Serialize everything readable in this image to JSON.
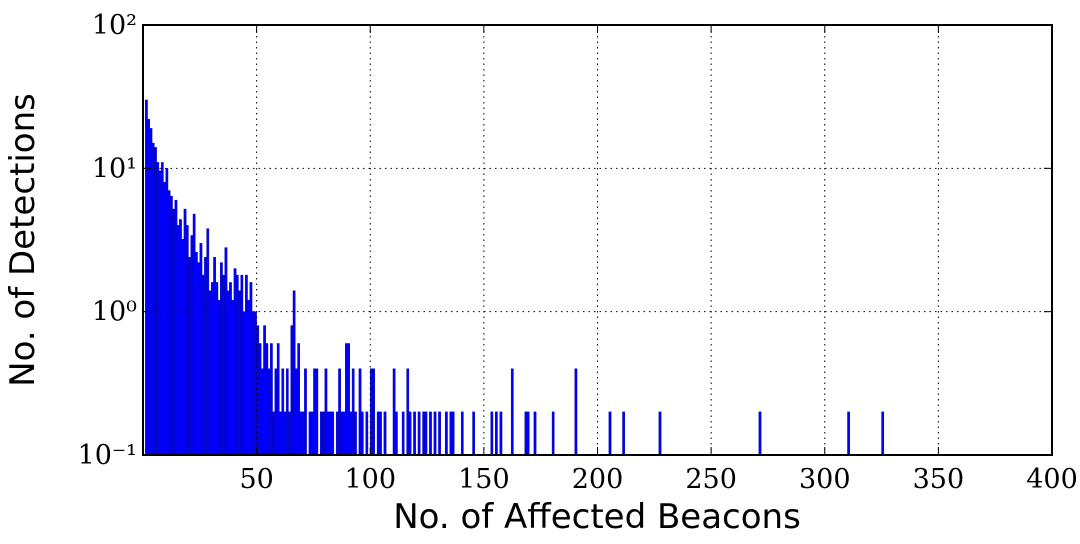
{
  "chart_data": {
    "type": "bar",
    "xlabel": "No. of Affected Beacons",
    "ylabel": "No. of Detections",
    "x": [
      1,
      2,
      3,
      4,
      5,
      6,
      7,
      8,
      9,
      10,
      11,
      12,
      13,
      14,
      15,
      16,
      17,
      18,
      19,
      20,
      21,
      22,
      23,
      24,
      25,
      26,
      27,
      28,
      29,
      30,
      31,
      32,
      33,
      34,
      35,
      36,
      37,
      38,
      39,
      40,
      41,
      42,
      43,
      44,
      45,
      46,
      47,
      48,
      49,
      50,
      51,
      52,
      53,
      54,
      55,
      56,
      57,
      58,
      59,
      60,
      61,
      62,
      63,
      64,
      65,
      66,
      67,
      68,
      69,
      70,
      71,
      73,
      74,
      75,
      76,
      78,
      79,
      80,
      81,
      82,
      83,
      85,
      86,
      87,
      88,
      89,
      90,
      91,
      92,
      93,
      95,
      96,
      98,
      100,
      101,
      103,
      104,
      106,
      110,
      111,
      114,
      116,
      117,
      119,
      121,
      123,
      124,
      126,
      128,
      130,
      133,
      135,
      136,
      140,
      145,
      153,
      155,
      157,
      162,
      168,
      169,
      172,
      180,
      190,
      205,
      211,
      227,
      271,
      310,
      325
    ],
    "values": [
      30,
      22,
      19,
      15,
      14,
      11,
      9.6,
      11,
      8,
      10,
      7,
      6.4,
      5.2,
      6,
      4,
      4.4,
      3.2,
      5.2,
      4,
      2.4,
      3.4,
      4.8,
      2.6,
      2.2,
      3,
      1.8,
      2.4,
      3.8,
      1.4,
      1.6,
      2.4,
      1.6,
      1.2,
      2.2,
      1.8,
      2.8,
      1.4,
      1.6,
      1.2,
      2,
      1.8,
      1.4,
      1.8,
      1,
      1.8,
      1.2,
      1.6,
      1,
      1,
      0.8,
      0.6,
      0.4,
      0.8,
      0.6,
      0.4,
      0.6,
      0.2,
      0.4,
      0.6,
      0.2,
      0.4,
      0.2,
      0.4,
      0.2,
      0.8,
      1.4,
      0.4,
      0.6,
      0.2,
      0.2,
      0.4,
      0.2,
      0.2,
      0.4,
      0.4,
      0.2,
      0.2,
      0.4,
      0.2,
      0.2,
      0.2,
      0.2,
      0.4,
      0.2,
      0.2,
      0.6,
      0.6,
      0.2,
      0.4,
      0.2,
      0.4,
      0.2,
      0.2,
      0.4,
      0.4,
      0.2,
      0.2,
      0.2,
      0.4,
      0.2,
      0.2,
      0.4,
      0.2,
      0.2,
      0.2,
      0.2,
      0.2,
      0.2,
      0.2,
      0.2,
      0.2,
      0.2,
      0.2,
      0.2,
      0.2,
      0.2,
      0.2,
      0.2,
      0.4,
      0.2,
      0.2,
      0.2,
      0.2,
      0.4,
      0.2,
      0.2,
      0.2,
      0.2,
      0.2,
      0.2
    ],
    "color": "#0000ff",
    "xlim": [
      0,
      400
    ],
    "ylim": [
      0.1,
      100
    ],
    "yscale": "log",
    "xticks": [
      50,
      100,
      150,
      200,
      250,
      300,
      350,
      400
    ],
    "yticks": [
      {
        "value": 0.1,
        "label": "10⁻¹"
      },
      {
        "value": 1,
        "label": "10⁰"
      },
      {
        "value": 10,
        "label": "10¹"
      },
      {
        "value": 100,
        "label": "10²"
      }
    ],
    "grid": true
  }
}
